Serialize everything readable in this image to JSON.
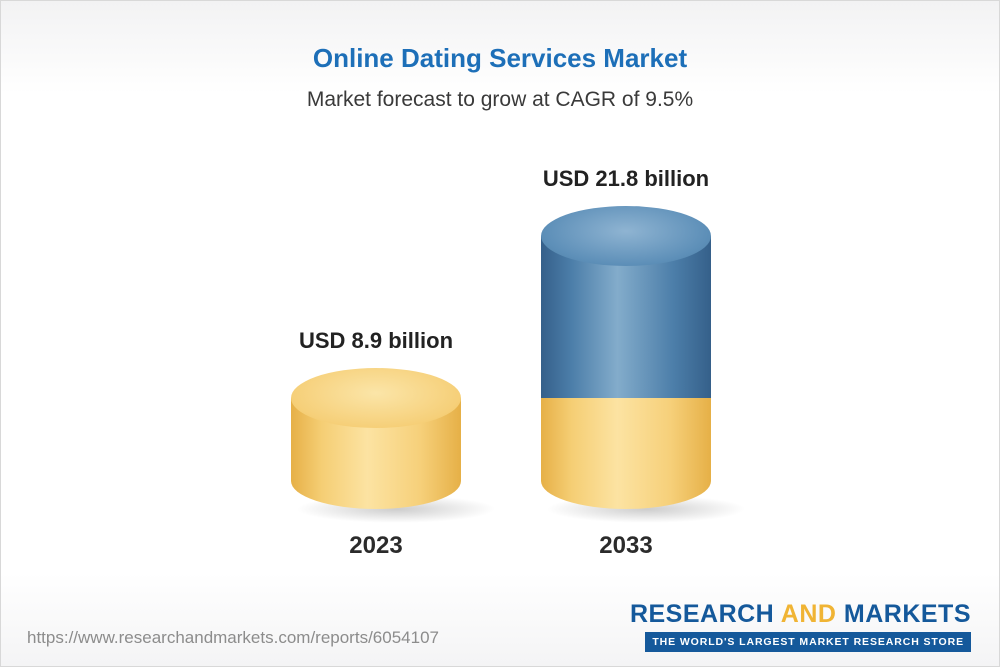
{
  "header": {
    "title": "Online Dating Services Market",
    "subtitle": "Market forecast to grow at CAGR of 9.5%"
  },
  "chart_data": {
    "type": "bar",
    "title": "Online Dating Services Market",
    "subtitle": "Market forecast to grow at CAGR of 9.5%",
    "categories": [
      "2023",
      "2033"
    ],
    "values": [
      8.9,
      21.8
    ],
    "value_labels": [
      "USD 8.9 billion",
      "USD 21.8 billion"
    ],
    "unit": "USD billion",
    "cagr": "9.5%",
    "legend_position": "none",
    "grid": false,
    "axes_visible": false,
    "colors": {
      "bar_2023": "#f5ce74",
      "bar_2033_top_segment": "#4c7ea9",
      "bar_2033_base_segment": "#f5ce74",
      "title": "#1d6fb8"
    }
  },
  "footer": {
    "url": "https://www.researchandmarkets.com/reports/6054107",
    "logo": {
      "research": "RESEARCH",
      "and": "AND",
      "markets": "MARKETS",
      "tagline": "THE WORLD'S LARGEST MARKET RESEARCH STORE"
    }
  }
}
